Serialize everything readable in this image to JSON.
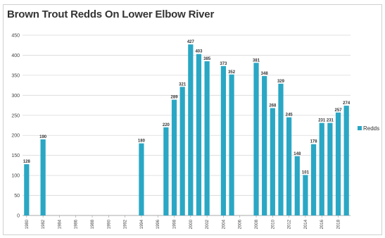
{
  "chart_data": {
    "type": "bar",
    "title": "Brown Trout Redds On Lower Elbow River",
    "xlabel": "",
    "ylabel": "",
    "ylim": [
      0,
      450
    ],
    "yticks": [
      0,
      50,
      100,
      150,
      200,
      250,
      300,
      350,
      400,
      450
    ],
    "grid": true,
    "legend": {
      "position": "right",
      "entries": [
        "Redds"
      ]
    },
    "color": "#2aa7c4",
    "x_start": 1980,
    "x_end": 2019,
    "xtick_labels": [
      "1980",
      "1982",
      "1984",
      "1986",
      "1988",
      "1990",
      "1992",
      "1994",
      "1996",
      "1998",
      "2000",
      "2002",
      "2004",
      "2006",
      "2008",
      "2010",
      "2012",
      "2014",
      "2016",
      "2018"
    ],
    "series": [
      {
        "name": "Redds",
        "x": [
          1980,
          1982,
          1994,
          1997,
          1998,
          1999,
          2000,
          2001,
          2002,
          2004,
          2005,
          2008,
          2009,
          2010,
          2011,
          2012,
          2013,
          2014,
          2015,
          2016,
          2017,
          2018,
          2019
        ],
        "values": [
          128,
          190,
          180,
          220,
          289,
          321,
          427,
          403,
          385,
          373,
          352,
          381,
          348,
          268,
          329,
          245,
          148,
          101,
          178,
          231,
          231,
          257,
          274
        ]
      }
    ]
  }
}
